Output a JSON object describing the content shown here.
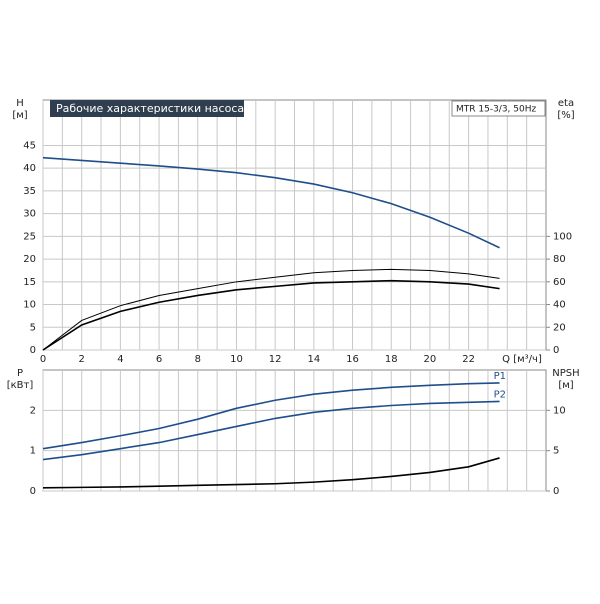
{
  "chart_data": [
    {
      "type": "line",
      "title": "Рабочие характеристики насоса",
      "model": "MTR 15-3/3, 50Hz",
      "ylabel": "H",
      "yunit": "[м]",
      "y2label": "eta",
      "y2unit": "[%]",
      "xlabel": "Q [м³/ч]",
      "xlim": [
        0,
        26
      ],
      "xticks": [
        0,
        2,
        4,
        6,
        8,
        10,
        12,
        14,
        16,
        18,
        20,
        22
      ],
      "ylim": [
        0,
        55
      ],
      "yticks": [
        0,
        5,
        10,
        15,
        20,
        25,
        30,
        35,
        40,
        45
      ],
      "y2lim": [
        0,
        220
      ],
      "y2ticks": [
        0,
        20,
        40,
        60,
        80,
        100
      ],
      "grid": true,
      "x": [
        0,
        2,
        4,
        6,
        8,
        10,
        12,
        14,
        16,
        18,
        20,
        22,
        23.6
      ],
      "series": [
        {
          "color": "#1f4e8c",
          "values": [
            42.3,
            41.7,
            41.1,
            40.5,
            39.8,
            39.0,
            37.9,
            36.5,
            34.6,
            32.2,
            29.2,
            25.7,
            22.5
          ]
        },
        {
          "color": "#000000",
          "axis": "y2",
          "values": [
            0,
            26,
            39,
            48,
            54,
            60,
            64,
            68,
            70,
            71,
            70,
            67,
            63
          ]
        },
        {
          "color": "#000000",
          "axis": "y2",
          "values": [
            0,
            22,
            34,
            42,
            48,
            53,
            56,
            59,
            60,
            61,
            60,
            58,
            54
          ]
        }
      ]
    },
    {
      "type": "line",
      "ylabel": "P",
      "yunit": "[кВт]",
      "y2label": "NPSH",
      "y2unit": "[м]",
      "xlim": [
        0,
        26
      ],
      "xticks": [
        0,
        2,
        4,
        6,
        8,
        10,
        12,
        14,
        16,
        18,
        20,
        22
      ],
      "ylim": [
        0,
        3
      ],
      "yticks": [
        0,
        1,
        2
      ],
      "y2lim": [
        0,
        15
      ],
      "y2ticks": [
        0,
        5,
        10
      ],
      "grid": true,
      "x": [
        0,
        2,
        4,
        6,
        8,
        10,
        12,
        14,
        16,
        18,
        20,
        22,
        23.6
      ],
      "series": [
        {
          "name": "P1",
          "color": "#1f4e8c",
          "values": [
            1.05,
            1.2,
            1.37,
            1.55,
            1.78,
            2.05,
            2.25,
            2.4,
            2.5,
            2.57,
            2.62,
            2.66,
            2.68
          ]
        },
        {
          "name": "P2",
          "color": "#1f4e8c",
          "values": [
            0.78,
            0.9,
            1.05,
            1.2,
            1.4,
            1.6,
            1.8,
            1.95,
            2.05,
            2.12,
            2.17,
            2.2,
            2.22
          ]
        },
        {
          "color": "#000000",
          "axis": "y2",
          "values": [
            0.4,
            0.45,
            0.5,
            0.6,
            0.7,
            0.8,
            0.9,
            1.1,
            1.4,
            1.8,
            2.3,
            3.0,
            4.1
          ]
        }
      ]
    }
  ]
}
